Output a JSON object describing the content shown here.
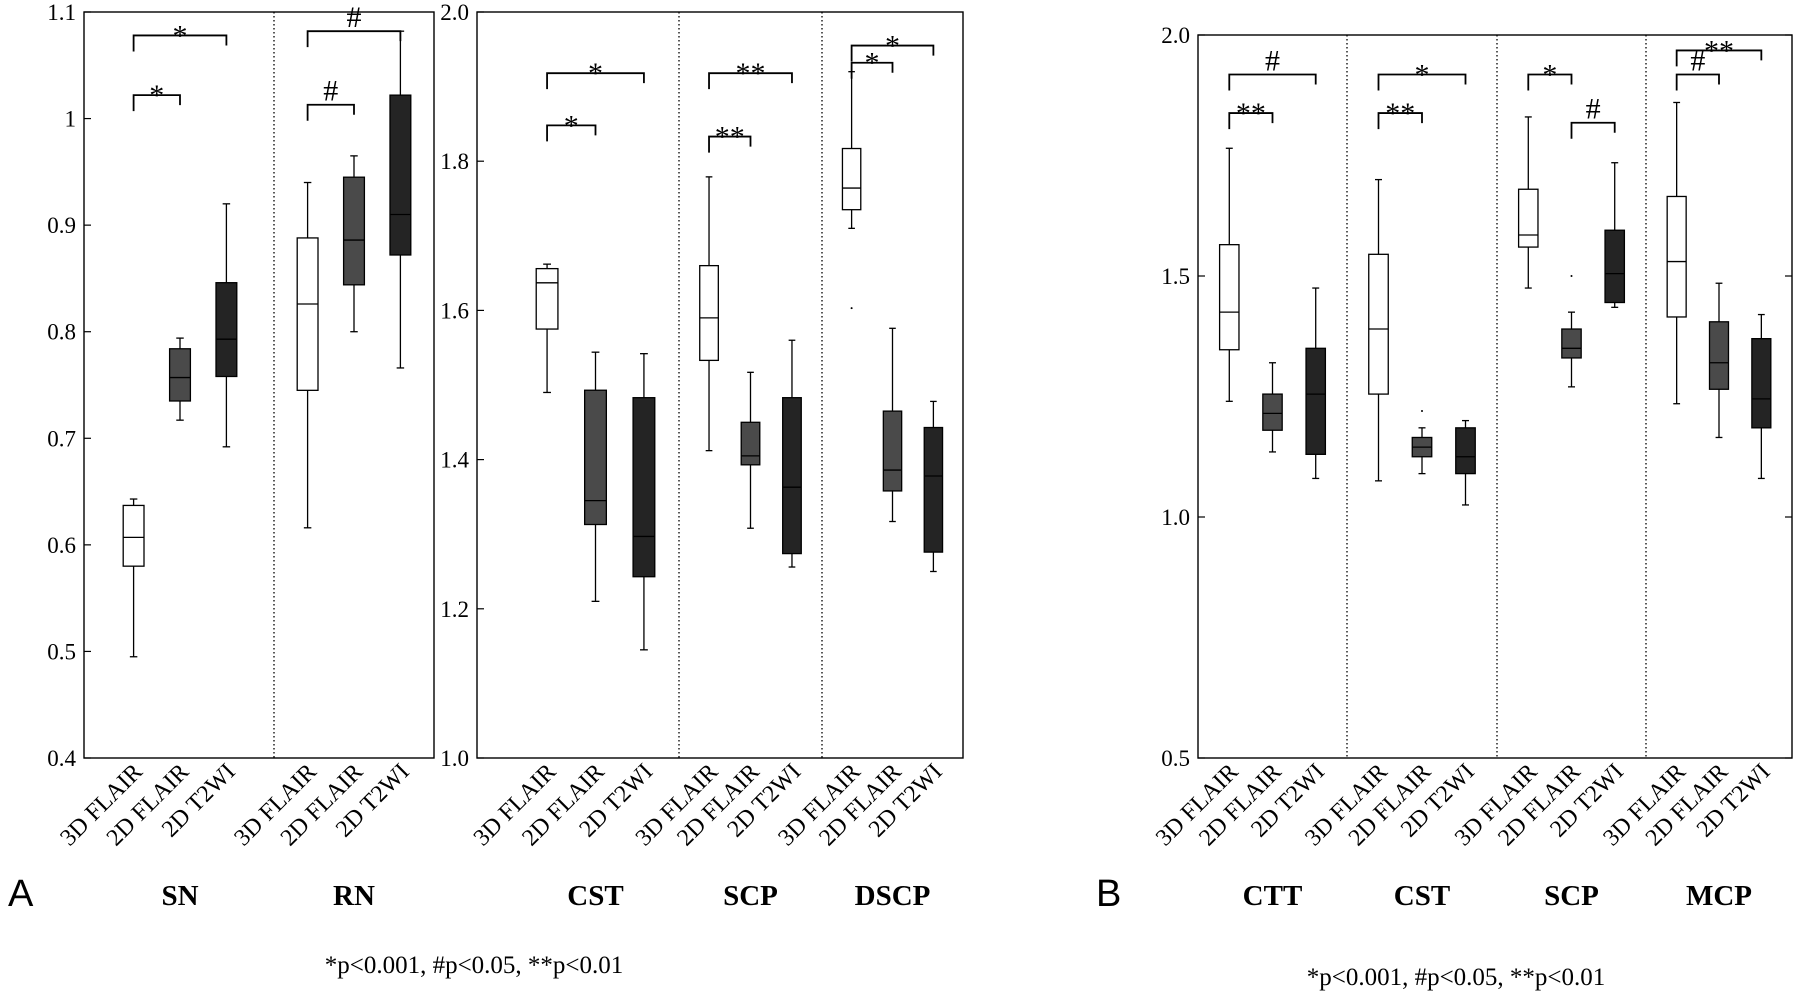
{
  "colors": {
    "3D FLAIR": "#ffffff",
    "2D FLAIR": "#4a4a4a",
    "2D T2WI": "#242424",
    "stroke": "#000000"
  },
  "footnotes": [
    "*p<0.001, #p<0.05, **p<0.01",
    "*p<0.001, #p<0.05, **p<0.01"
  ],
  "chart_data": [
    {
      "type": "box",
      "panel_label": "A",
      "ylim": [
        0.4,
        1.1
      ],
      "yticks": [
        "0.4",
        "0.5",
        "0.6",
        "0.7",
        "0.8",
        "0.9",
        "1",
        "1.1"
      ],
      "categories": [
        "3D FLAIR",
        "2D FLAIR",
        "2D T2WI"
      ],
      "groups": [
        {
          "name": "SN",
          "boxes": [
            {
              "min": 0.495,
              "q1": 0.58,
              "median": 0.607,
              "q3": 0.637,
              "max": 0.643
            },
            {
              "min": 0.717,
              "q1": 0.735,
              "median": 0.757,
              "q3": 0.784,
              "max": 0.794
            },
            {
              "min": 0.692,
              "q1": 0.758,
              "median": 0.793,
              "q3": 0.846,
              "max": 0.92
            }
          ],
          "comparisons": [
            {
              "from": 0,
              "to": 1,
              "label": "*",
              "level": 1.022
            },
            {
              "from": 0,
              "to": 2,
              "label": "*",
              "level": 1.078
            }
          ]
        },
        {
          "name": "RN",
          "boxes": [
            {
              "min": 0.616,
              "q1": 0.745,
              "median": 0.826,
              "q3": 0.888,
              "max": 0.94
            },
            {
              "min": 0.8,
              "q1": 0.844,
              "median": 0.886,
              "q3": 0.945,
              "max": 0.965
            },
            {
              "min": 0.766,
              "q1": 0.872,
              "median": 0.91,
              "q3": 1.022,
              "max": 1.082
            }
          ],
          "comparisons": [
            {
              "from": 0,
              "to": 1,
              "label": "#",
              "level": 1.013
            },
            {
              "from": 0,
              "to": 2,
              "label": "#",
              "level": 1.082
            }
          ]
        }
      ]
    },
    {
      "type": "box",
      "ylim": [
        1.0,
        2.0
      ],
      "yticks": [
        "1.0",
        "1.2",
        "1.4",
        "1.6",
        "1.8",
        "2.0"
      ],
      "categories": [
        "3D FLAIR",
        "2D FLAIR",
        "2D T2WI"
      ],
      "groups": [
        {
          "name": "CST",
          "boxes": [
            {
              "min": 1.49,
              "q1": 1.575,
              "median": 1.637,
              "q3": 1.656,
              "max": 1.662
            },
            {
              "min": 1.21,
              "q1": 1.313,
              "median": 1.345,
              "q3": 1.493,
              "max": 1.544
            },
            {
              "min": 1.145,
              "q1": 1.243,
              "median": 1.297,
              "q3": 1.483,
              "max": 1.542
            }
          ],
          "comparisons": [
            {
              "from": 0,
              "to": 1,
              "label": "*",
              "level": 1.848
            },
            {
              "from": 0,
              "to": 2,
              "label": "*",
              "level": 1.918
            }
          ]
        },
        {
          "name": "SCP",
          "boxes": [
            {
              "min": 1.412,
              "q1": 1.533,
              "median": 1.59,
              "q3": 1.66,
              "max": 1.779
            },
            {
              "min": 1.308,
              "q1": 1.393,
              "median": 1.405,
              "q3": 1.45,
              "max": 1.517
            },
            {
              "min": 1.256,
              "q1": 1.274,
              "median": 1.363,
              "q3": 1.483,
              "max": 1.56
            }
          ],
          "comparisons": [
            {
              "from": 0,
              "to": 1,
              "label": "**",
              "level": 1.833
            },
            {
              "from": 0,
              "to": 2,
              "label": "**",
              "level": 1.918
            }
          ]
        },
        {
          "name": "DSCP",
          "boxes": [
            {
              "min": 1.71,
              "q1": 1.735,
              "median": 1.764,
              "q3": 1.817,
              "max": 1.92,
              "outliers": [
                1.603
              ]
            },
            {
              "min": 1.317,
              "q1": 1.358,
              "median": 1.386,
              "q3": 1.465,
              "max": 1.576
            },
            {
              "min": 1.25,
              "q1": 1.276,
              "median": 1.378,
              "q3": 1.443,
              "max": 1.478
            }
          ],
          "comparisons": [
            {
              "from": 0,
              "to": 1,
              "label": "*",
              "level": 1.932
            },
            {
              "from": 0,
              "to": 2,
              "label": "*",
              "level": 1.955
            }
          ]
        }
      ]
    },
    {
      "type": "box",
      "panel_label": "B",
      "ylim": [
        0.5,
        2.0
      ],
      "yticks": [
        "0.5",
        "1.0",
        "1.5",
        "2.0"
      ],
      "categories": [
        "3D FLAIR",
        "2D FLAIR",
        "2D T2WI"
      ],
      "groups": [
        {
          "name": "CTT",
          "boxes": [
            {
              "min": 1.24,
              "q1": 1.347,
              "median": 1.425,
              "q3": 1.565,
              "max": 1.765
            },
            {
              "min": 1.135,
              "q1": 1.18,
              "median": 1.215,
              "q3": 1.255,
              "max": 1.32
            },
            {
              "min": 1.08,
              "q1": 1.13,
              "median": 1.255,
              "q3": 1.35,
              "max": 1.475
            }
          ],
          "comparisons": [
            {
              "from": 0,
              "to": 1,
              "label": "**",
              "level": 1.838
            },
            {
              "from": 0,
              "to": 2,
              "label": "#",
              "level": 1.918
            }
          ]
        },
        {
          "name": "CST",
          "boxes": [
            {
              "min": 1.075,
              "q1": 1.255,
              "median": 1.39,
              "q3": 1.545,
              "max": 1.7
            },
            {
              "min": 1.09,
              "q1": 1.125,
              "median": 1.145,
              "q3": 1.165,
              "max": 1.185,
              "outliers": [
                1.22
              ]
            },
            {
              "min": 1.025,
              "q1": 1.09,
              "median": 1.125,
              "q3": 1.185,
              "max": 1.2
            }
          ],
          "comparisons": [
            {
              "from": 0,
              "to": 1,
              "label": "**",
              "level": 1.838
            },
            {
              "from": 0,
              "to": 2,
              "label": "*",
              "level": 1.918
            }
          ]
        },
        {
          "name": "SCP",
          "boxes": [
            {
              "min": 1.475,
              "q1": 1.56,
              "median": 1.585,
              "q3": 1.68,
              "max": 1.83
            },
            {
              "min": 1.27,
              "q1": 1.33,
              "median": 1.35,
              "q3": 1.39,
              "max": 1.425,
              "outliers": [
                1.5
              ]
            },
            {
              "min": 1.435,
              "q1": 1.445,
              "median": 1.505,
              "q3": 1.595,
              "max": 1.735
            }
          ],
          "comparisons": [
            {
              "from": 0,
              "to": 1,
              "label": "*",
              "level": 1.918
            },
            {
              "from": 1,
              "to": 2,
              "label": "#",
              "level": 1.818
            }
          ]
        },
        {
          "name": "MCP",
          "boxes": [
            {
              "min": 1.235,
              "q1": 1.415,
              "median": 1.53,
              "q3": 1.665,
              "max": 1.86
            },
            {
              "min": 1.165,
              "q1": 1.265,
              "median": 1.32,
              "q3": 1.405,
              "max": 1.485
            },
            {
              "min": 1.08,
              "q1": 1.185,
              "median": 1.245,
              "q3": 1.37,
              "max": 1.42
            }
          ],
          "comparisons": [
            {
              "from": 0,
              "to": 1,
              "label": "#",
              "level": 1.918
            },
            {
              "from": 0,
              "to": 2,
              "label": "**",
              "level": 1.968
            }
          ]
        }
      ]
    }
  ]
}
